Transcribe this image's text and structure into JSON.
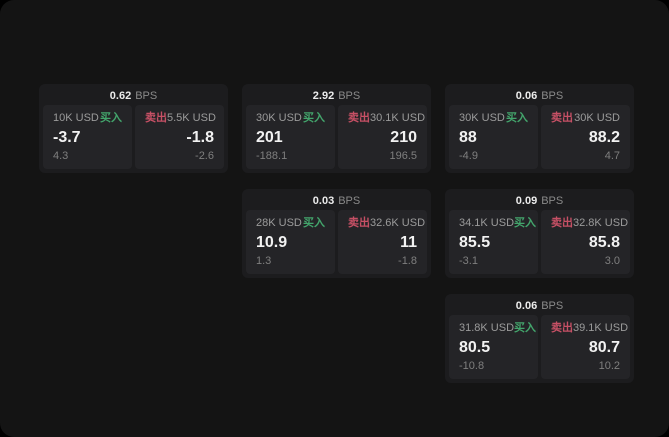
{
  "labels": {
    "buy": "买入",
    "sell": "卖出",
    "bps_unit": "BPS"
  },
  "colors": {
    "screen_bg": "#141414",
    "card_bg": "#1c1c1e",
    "panel_bg": "#242427",
    "buy_green": "#43a56c",
    "sell_red": "#c65065"
  },
  "cards": [
    {
      "bps": "0.62",
      "buy": {
        "amount": "10K USD",
        "price": "-3.7",
        "change": "4.3"
      },
      "sell": {
        "amount": "5.5K USD",
        "price": "-1.8",
        "change": "-2.6"
      }
    },
    {
      "bps": "2.92",
      "buy": {
        "amount": "30K USD",
        "price": "201",
        "change": "-188.1"
      },
      "sell": {
        "amount": "30.1K USD",
        "price": "210",
        "change": "196.5"
      }
    },
    {
      "bps": "0.06",
      "buy": {
        "amount": "30K USD",
        "price": "88",
        "change": "-4.9"
      },
      "sell": {
        "amount": "30K USD",
        "price": "88.2",
        "change": "4.7"
      }
    },
    {
      "bps": "0.03",
      "buy": {
        "amount": "28K USD",
        "price": "10.9",
        "change": "1.3"
      },
      "sell": {
        "amount": "32.6K USD",
        "price": "11",
        "change": "-1.8"
      }
    },
    {
      "bps": "0.09",
      "buy": {
        "amount": "34.1K USD",
        "price": "85.5",
        "change": "-3.1"
      },
      "sell": {
        "amount": "32.8K USD",
        "price": "85.8",
        "change": "3.0"
      }
    },
    {
      "bps": "0.06",
      "buy": {
        "amount": "31.8K USD",
        "price": "80.5",
        "change": "-10.8"
      },
      "sell": {
        "amount": "39.1K USD",
        "price": "80.7",
        "change": "10.2"
      }
    }
  ]
}
